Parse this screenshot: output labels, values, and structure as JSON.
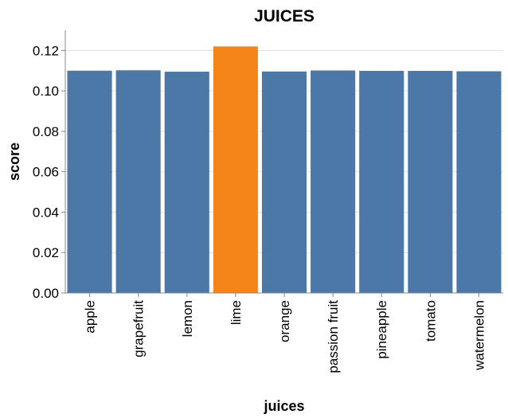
{
  "chart_data": {
    "type": "bar",
    "title": "JUICES",
    "xlabel": "juices",
    "ylabel": "score",
    "categories": [
      "apple",
      "grapefruit",
      "lemon",
      "lime",
      "orange",
      "passion fruit",
      "pineapple",
      "tomato",
      "watermelon"
    ],
    "values": [
      0.11,
      0.1102,
      0.1095,
      0.122,
      0.1096,
      0.1101,
      0.1099,
      0.1099,
      0.1097
    ],
    "highlight": "lime",
    "ylim": [
      0,
      0.13
    ],
    "yticks": [
      "0.00",
      "0.02",
      "0.04",
      "0.06",
      "0.08",
      "0.10",
      "0.12"
    ],
    "grid": true,
    "colors": {
      "bar": "#4c78a8",
      "highlight": "#f58518"
    }
  }
}
